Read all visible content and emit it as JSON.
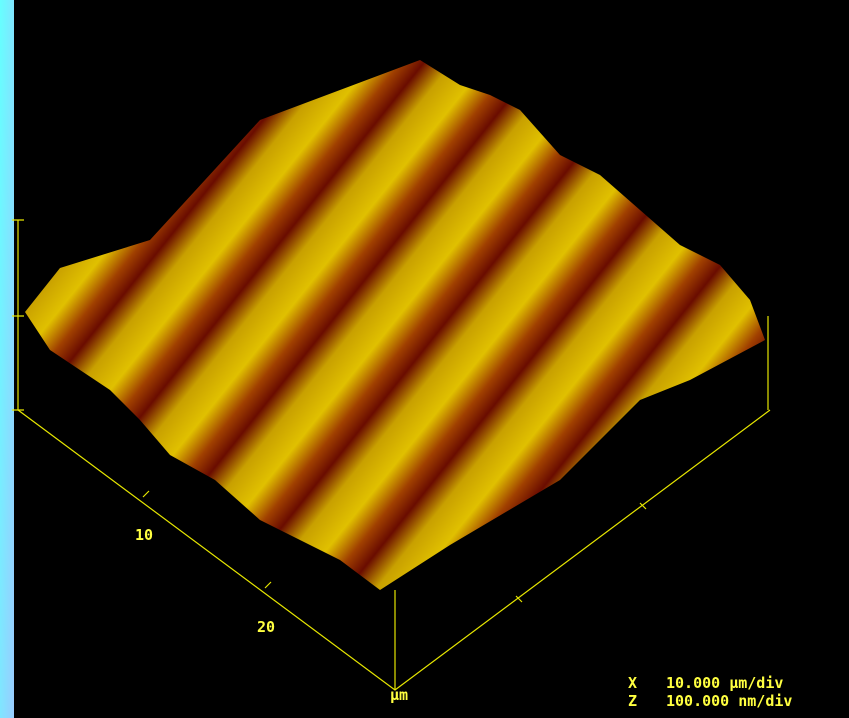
{
  "axis": {
    "ticks": [
      "10",
      "20"
    ],
    "unit": "µm"
  },
  "scale": {
    "rows": [
      [
        "X",
        "10.000 µm/div"
      ],
      [
        "Z",
        "100.000 nm/div"
      ]
    ]
  }
}
